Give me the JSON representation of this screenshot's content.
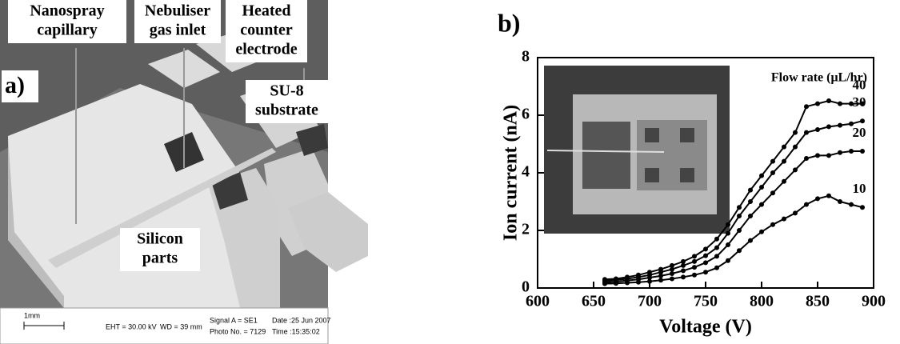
{
  "panel_a": {
    "panel_label": "a)",
    "labels": [
      [
        "Nanospray",
        "capillary"
      ],
      [
        "Nebuliser",
        "gas inlet"
      ],
      [
        "Heated",
        "counter",
        "electrode"
      ],
      [
        "SU-8",
        "substrate"
      ],
      [
        "Silicon",
        "parts"
      ]
    ],
    "footer": {
      "scale": "1mm",
      "eht": "EHT = 30.00 kV",
      "wd": "WD =  39 mm",
      "signal": "Signal A = SE1",
      "photo": "Photo No. = 7129",
      "date": "Date :25 Jun 2007",
      "time": "Time :15:35:02"
    }
  },
  "chart_data": {
    "type": "line",
    "panel_label": "b)",
    "xlabel": "Voltage (V)",
    "ylabel": "Ion current (nA)",
    "annotation": "Flow rate (μL/hr)",
    "x": [
      660,
      670,
      680,
      690,
      700,
      710,
      720,
      730,
      740,
      750,
      760,
      770,
      780,
      790,
      800,
      810,
      820,
      830,
      840,
      850,
      860,
      870,
      880,
      890
    ],
    "series": [
      {
        "name": "10",
        "color": "#000000",
        "values": [
          0.15,
          0.16,
          0.18,
          0.2,
          0.23,
          0.27,
          0.32,
          0.38,
          0.45,
          0.55,
          0.7,
          0.95,
          1.3,
          1.65,
          1.95,
          2.2,
          2.4,
          2.6,
          2.9,
          3.1,
          3.2,
          3.0,
          2.9,
          2.8
        ]
      },
      {
        "name": "20",
        "color": "#000000",
        "values": [
          0.2,
          0.22,
          0.26,
          0.3,
          0.36,
          0.42,
          0.5,
          0.6,
          0.72,
          0.88,
          1.1,
          1.5,
          2.0,
          2.5,
          2.9,
          3.3,
          3.7,
          4.1,
          4.5,
          4.6,
          4.6,
          4.7,
          4.75,
          4.75
        ]
      },
      {
        "name": "30",
        "color": "#000000",
        "values": [
          0.25,
          0.28,
          0.32,
          0.38,
          0.45,
          0.55,
          0.65,
          0.78,
          0.92,
          1.12,
          1.4,
          1.9,
          2.5,
          3.0,
          3.5,
          4.0,
          4.4,
          4.9,
          5.4,
          5.5,
          5.6,
          5.65,
          5.7,
          5.8
        ]
      },
      {
        "name": "40",
        "color": "#000000",
        "values": [
          0.3,
          0.32,
          0.38,
          0.45,
          0.55,
          0.65,
          0.78,
          0.92,
          1.1,
          1.35,
          1.7,
          2.2,
          2.8,
          3.4,
          3.9,
          4.4,
          4.9,
          5.4,
          6.3,
          6.4,
          6.5,
          6.4,
          6.4,
          6.4
        ]
      }
    ],
    "xlim": [
      600,
      900
    ],
    "xticks": [
      600,
      650,
      700,
      750,
      800,
      850,
      900
    ],
    "ylim": [
      0,
      8
    ],
    "yticks": [
      0,
      2,
      4,
      6,
      8
    ],
    "grid": false
  }
}
